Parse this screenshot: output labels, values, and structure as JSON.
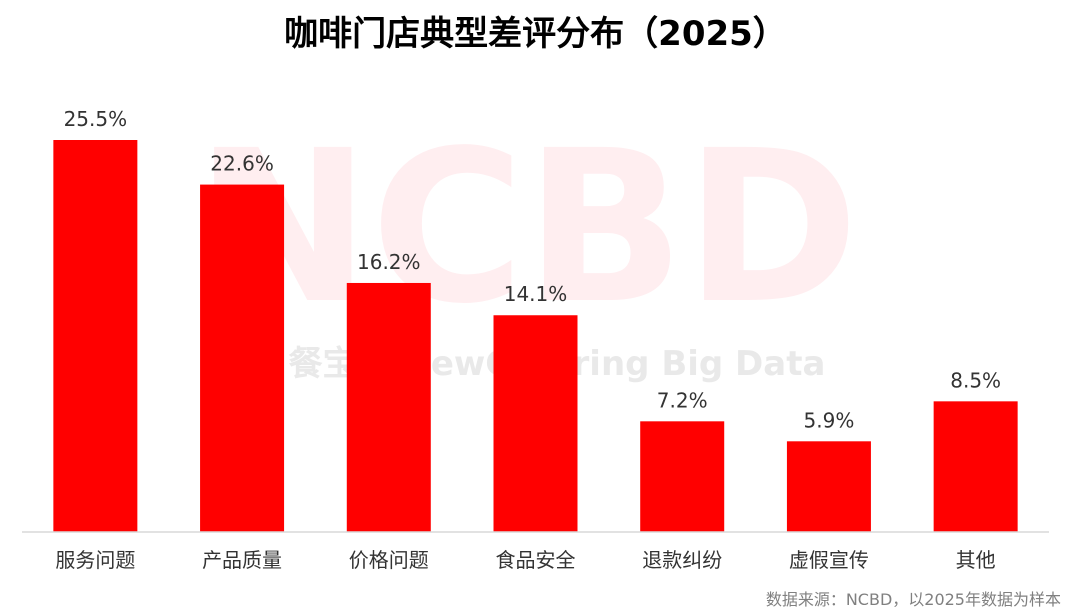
{
  "chart_data": {
    "type": "bar",
    "title": "咖啡门店典型差评分布（2025）",
    "categories": [
      "服务问题",
      "产品质量",
      "价格问题",
      "食品安全",
      "退款纠纷",
      "虚假宣传",
      "其他"
    ],
    "values": [
      25.5,
      22.6,
      16.2,
      14.1,
      7.2,
      5.9,
      8.5
    ],
    "value_labels": [
      "25.5%",
      "22.6%",
      "16.2%",
      "14.1%",
      "7.2%",
      "5.9%",
      "8.5%"
    ],
    "xlabel": "",
    "ylabel": "",
    "ylim": [
      0,
      25.5
    ],
    "grid": false,
    "legend": "none",
    "bar_color": "#ff0000"
  },
  "watermark": {
    "main": "NCBD",
    "sub": "餐宝典 NewCatering Big Data"
  },
  "source": "数据来源：NCBD，以2025年数据为样本"
}
